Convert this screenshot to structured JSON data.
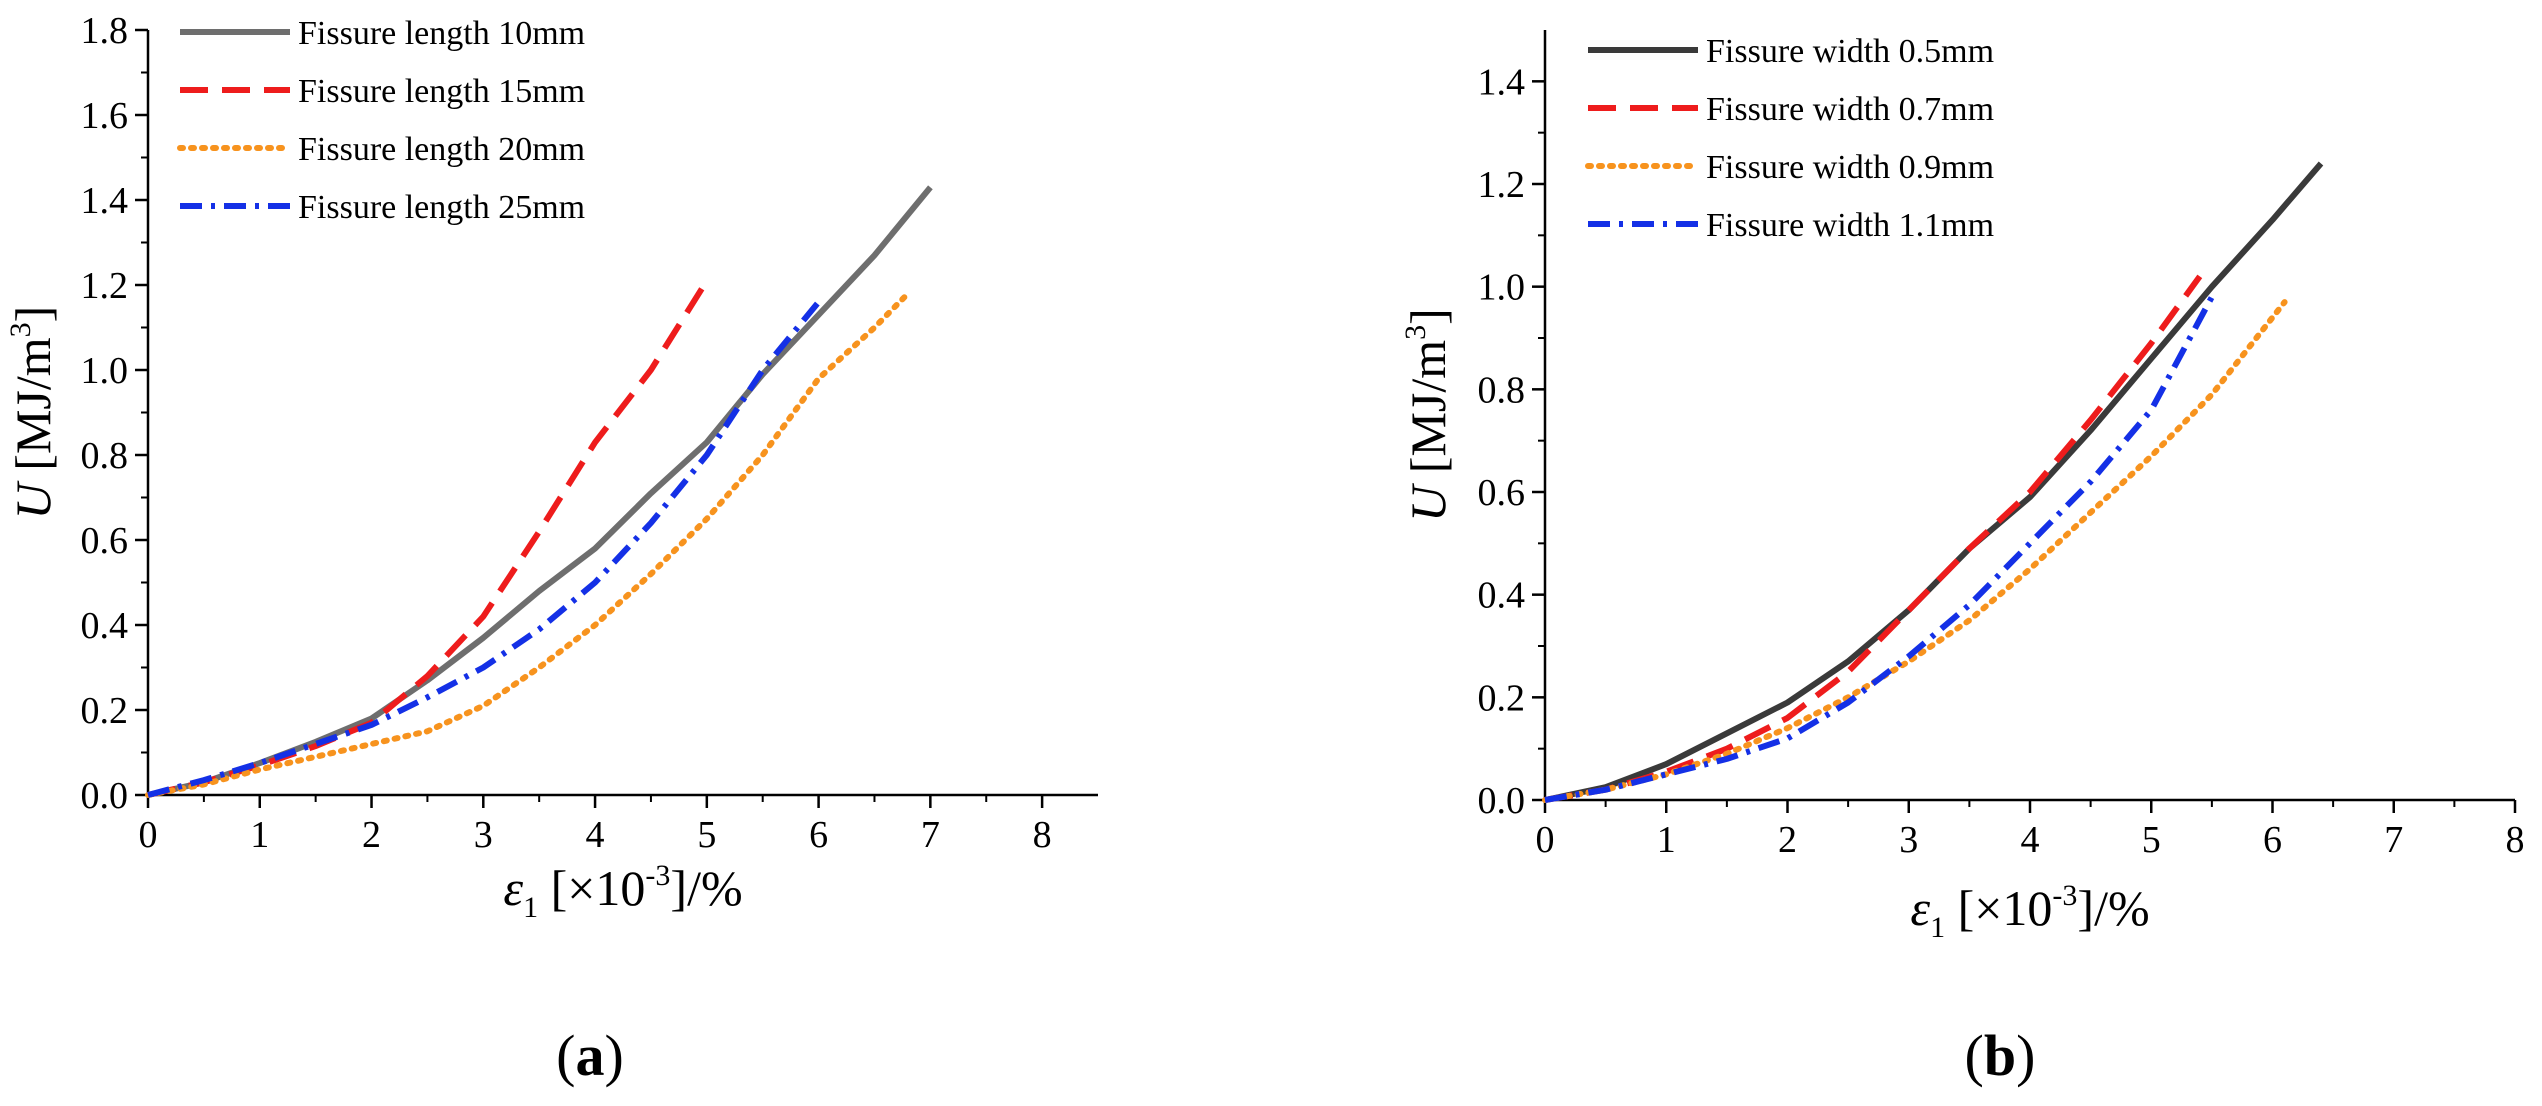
{
  "chart_data": [
    {
      "type": "line",
      "panel": "a",
      "panel_label": "(a)",
      "panel_letter": "a",
      "xlabel": "ε1 [×10-3]/%",
      "ylabel": "U [MJ/m3]",
      "xlabel_parts": {
        "symbol": "ε",
        "sub": "1",
        "open": " [×10",
        "sup": "-3",
        "close": "]/%"
      },
      "ylabel_parts": {
        "symbol": "U",
        "open": " [MJ/m",
        "sup": "3",
        "close": "]"
      },
      "xlim": [
        0,
        8.5
      ],
      "ylim": [
        0,
        1.8
      ],
      "xticks": [
        0,
        1,
        2,
        3,
        4,
        5,
        6,
        7,
        8
      ],
      "yticks": [
        0.0,
        0.2,
        0.4,
        0.6,
        0.8,
        1.0,
        1.2,
        1.4,
        1.6,
        1.8
      ],
      "legend_position": "top-left",
      "series": [
        {
          "name": "Fissure length 10mm",
          "color": "#6e6e6e",
          "style": "solid",
          "x": [
            0,
            0.5,
            1.0,
            1.5,
            2.0,
            2.5,
            3.0,
            3.5,
            4.0,
            4.5,
            5.0,
            5.5,
            6.0,
            6.5,
            7.0
          ],
          "y": [
            0,
            0.03,
            0.075,
            0.125,
            0.18,
            0.27,
            0.37,
            0.48,
            0.58,
            0.71,
            0.83,
            0.99,
            1.13,
            1.27,
            1.43
          ]
        },
        {
          "name": "Fissure length 15mm",
          "color": "#ee1c1c",
          "style": "dash",
          "x": [
            0,
            0.5,
            1.0,
            1.5,
            2.0,
            2.5,
            3.0,
            3.5,
            4.0,
            4.5,
            5.0
          ],
          "y": [
            0,
            0.03,
            0.07,
            0.115,
            0.17,
            0.28,
            0.42,
            0.62,
            0.83,
            1.0,
            1.21
          ]
        },
        {
          "name": "Fissure length 20mm",
          "color": "#f7931e",
          "style": "dot",
          "x": [
            0,
            0.5,
            1.0,
            1.5,
            2.0,
            2.5,
            3.0,
            3.5,
            4.0,
            4.5,
            5.0,
            5.5,
            6.0,
            6.5,
            6.8
          ],
          "y": [
            0,
            0.025,
            0.06,
            0.09,
            0.12,
            0.15,
            0.21,
            0.3,
            0.4,
            0.52,
            0.65,
            0.8,
            0.98,
            1.1,
            1.18
          ]
        },
        {
          "name": "Fissure length 25mm",
          "color": "#1430e6",
          "style": "dashdot",
          "x": [
            0,
            0.5,
            1.0,
            1.5,
            2.0,
            2.5,
            3.0,
            3.5,
            4.0,
            4.5,
            5.0,
            5.5,
            6.0
          ],
          "y": [
            0,
            0.035,
            0.075,
            0.12,
            0.165,
            0.23,
            0.3,
            0.39,
            0.5,
            0.64,
            0.8,
            1.0,
            1.16
          ]
        }
      ]
    },
    {
      "type": "line",
      "panel": "b",
      "panel_label": "(b)",
      "panel_letter": "b",
      "xlabel": "ε1 [×10-3]/%",
      "ylabel": "U [MJ/m3]",
      "xlabel_parts": {
        "symbol": "ε",
        "sub": "1",
        "open": " [×10",
        "sup": "-3",
        "close": "]/%"
      },
      "ylabel_parts": {
        "symbol": "U",
        "open": " [MJ/m",
        "sup": "3",
        "close": "]"
      },
      "xlim": [
        0,
        8
      ],
      "ylim": [
        0,
        1.5
      ],
      "xticks": [
        0,
        1,
        2,
        3,
        4,
        5,
        6,
        7,
        8
      ],
      "yticks": [
        0.0,
        0.2,
        0.4,
        0.6,
        0.8,
        1.0,
        1.2,
        1.4
      ],
      "legend_position": "top-left",
      "series": [
        {
          "name": "Fissure width 0.5mm",
          "color": "#3a3a3a",
          "style": "solid",
          "x": [
            0,
            0.5,
            1.0,
            1.5,
            2.0,
            2.5,
            3.0,
            3.5,
            4.0,
            4.5,
            5.0,
            5.5,
            6.0,
            6.4
          ],
          "y": [
            0,
            0.025,
            0.07,
            0.13,
            0.19,
            0.27,
            0.37,
            0.49,
            0.59,
            0.72,
            0.86,
            1.0,
            1.13,
            1.24
          ]
        },
        {
          "name": "Fissure width 0.7mm",
          "color": "#ee1c1c",
          "style": "dash",
          "x": [
            0,
            0.5,
            1.0,
            1.5,
            2.0,
            2.5,
            3.0,
            3.5,
            4.0,
            4.5,
            5.0,
            5.4
          ],
          "y": [
            0,
            0.02,
            0.055,
            0.1,
            0.16,
            0.25,
            0.37,
            0.49,
            0.6,
            0.74,
            0.89,
            1.02
          ]
        },
        {
          "name": "Fissure width 0.9mm",
          "color": "#f7931e",
          "style": "dot",
          "x": [
            0,
            0.5,
            1.0,
            1.5,
            2.0,
            2.5,
            3.0,
            3.5,
            4.0,
            4.5,
            5.0,
            5.5,
            6.1
          ],
          "y": [
            0,
            0.02,
            0.05,
            0.09,
            0.14,
            0.2,
            0.27,
            0.35,
            0.45,
            0.56,
            0.67,
            0.79,
            0.97
          ]
        },
        {
          "name": "Fissure width 1.1mm",
          "color": "#1430e6",
          "style": "dashdot",
          "x": [
            0,
            0.5,
            1.0,
            1.5,
            2.0,
            2.5,
            3.0,
            3.5,
            4.0,
            4.5,
            5.0,
            5.5
          ],
          "y": [
            0,
            0.02,
            0.05,
            0.08,
            0.12,
            0.19,
            0.28,
            0.38,
            0.5,
            0.62,
            0.76,
            0.98
          ]
        }
      ]
    }
  ]
}
